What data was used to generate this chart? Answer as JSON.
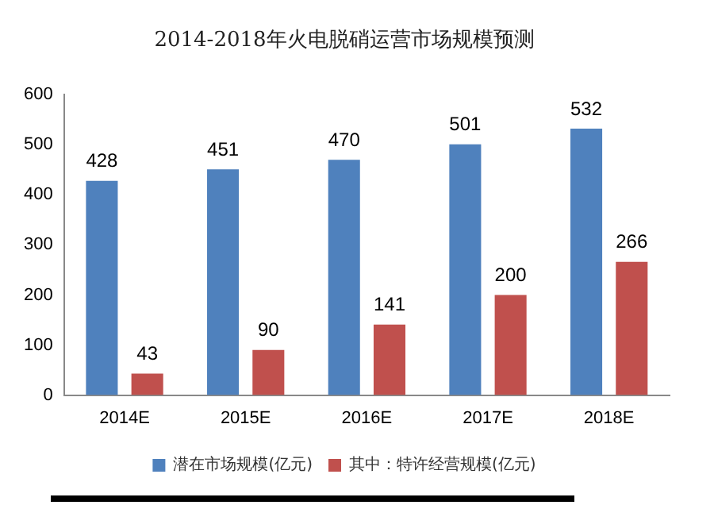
{
  "chart_data": {
    "type": "bar",
    "title": "2014-2018年火电脱硝运营市场规模预测",
    "categories": [
      "2014E",
      "2015E",
      "2016E",
      "2017E",
      "2018E"
    ],
    "series": [
      {
        "name": "潜在市场规模(亿元)",
        "color": "#4f81bd",
        "values": [
          428,
          451,
          470,
          501,
          532
        ]
      },
      {
        "name": "其中：特许经营规模(亿元)",
        "color": "#c0504d",
        "values": [
          43,
          90,
          141,
          200,
          266
        ]
      }
    ],
    "ylim": [
      0,
      600
    ],
    "yticks": [
      0,
      100,
      200,
      300,
      400,
      500,
      600
    ],
    "grid": false,
    "legend": "bottom",
    "data_labels": true
  }
}
